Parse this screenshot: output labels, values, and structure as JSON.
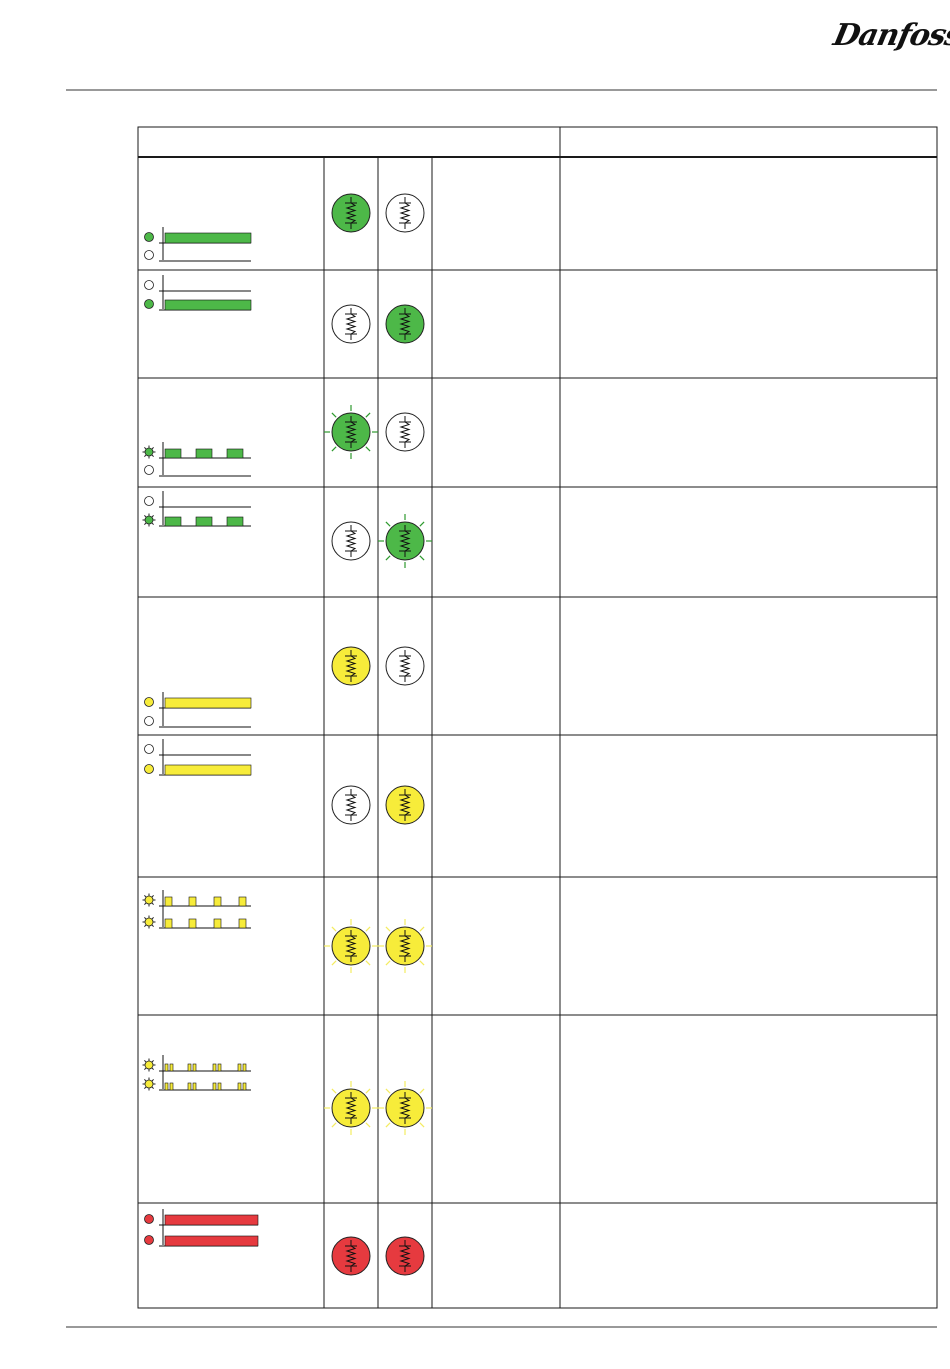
{
  "logo": {
    "text": "Danfoss"
  },
  "colors": {
    "green": "#4db848",
    "yellow": "#f7ec3a",
    "red": "#e63a3f",
    "line": "#1a1a1a"
  },
  "table": {
    "header": [
      "",
      ""
    ],
    "rows": [
      {
        "leds": [
          {
            "color": "green",
            "mode": "steady"
          },
          {
            "color": "off",
            "mode": "off"
          }
        ],
        "icons": [
          {
            "color": "green",
            "glow": false
          },
          {
            "color": "off",
            "glow": false
          }
        ],
        "description": ""
      },
      {
        "leds": [
          {
            "color": "off",
            "mode": "off"
          },
          {
            "color": "green",
            "mode": "steady"
          }
        ],
        "icons": [
          {
            "color": "off",
            "glow": false
          },
          {
            "color": "green",
            "glow": false
          }
        ],
        "description": ""
      },
      {
        "leds": [
          {
            "color": "green",
            "mode": "flash"
          },
          {
            "color": "off",
            "mode": "off"
          }
        ],
        "icons": [
          {
            "color": "green",
            "glow": true
          },
          {
            "color": "off",
            "glow": false
          }
        ],
        "description": ""
      },
      {
        "leds": [
          {
            "color": "off",
            "mode": "off"
          },
          {
            "color": "green",
            "mode": "flash"
          }
        ],
        "icons": [
          {
            "color": "off",
            "glow": false
          },
          {
            "color": "green",
            "glow": true
          }
        ],
        "description": ""
      },
      {
        "leds": [
          {
            "color": "yellow",
            "mode": "steady"
          },
          {
            "color": "off",
            "mode": "off"
          }
        ],
        "icons": [
          {
            "color": "yellow",
            "glow": false
          },
          {
            "color": "off",
            "glow": false
          }
        ],
        "description": ""
      },
      {
        "leds": [
          {
            "color": "off",
            "mode": "off"
          },
          {
            "color": "yellow",
            "mode": "steady"
          }
        ],
        "icons": [
          {
            "color": "off",
            "glow": false
          },
          {
            "color": "yellow",
            "glow": false
          }
        ],
        "description": ""
      },
      {
        "leds": [
          {
            "color": "yellow",
            "mode": "pulse"
          },
          {
            "color": "yellow",
            "mode": "pulse"
          }
        ],
        "icons": [
          {
            "color": "yellow",
            "glow": true
          },
          {
            "color": "yellow",
            "glow": true
          }
        ],
        "description": ""
      },
      {
        "leds": [
          {
            "color": "yellow",
            "mode": "double-pulse"
          },
          {
            "color": "yellow",
            "mode": "double-pulse"
          }
        ],
        "icons": [
          {
            "color": "yellow",
            "glow": true
          },
          {
            "color": "yellow",
            "glow": true
          }
        ],
        "description": ""
      },
      {
        "leds": [
          {
            "color": "red",
            "mode": "steady"
          },
          {
            "color": "red",
            "mode": "steady"
          }
        ],
        "icons": [
          {
            "color": "red",
            "glow": false
          },
          {
            "color": "red",
            "glow": false
          }
        ],
        "description": ""
      }
    ]
  }
}
